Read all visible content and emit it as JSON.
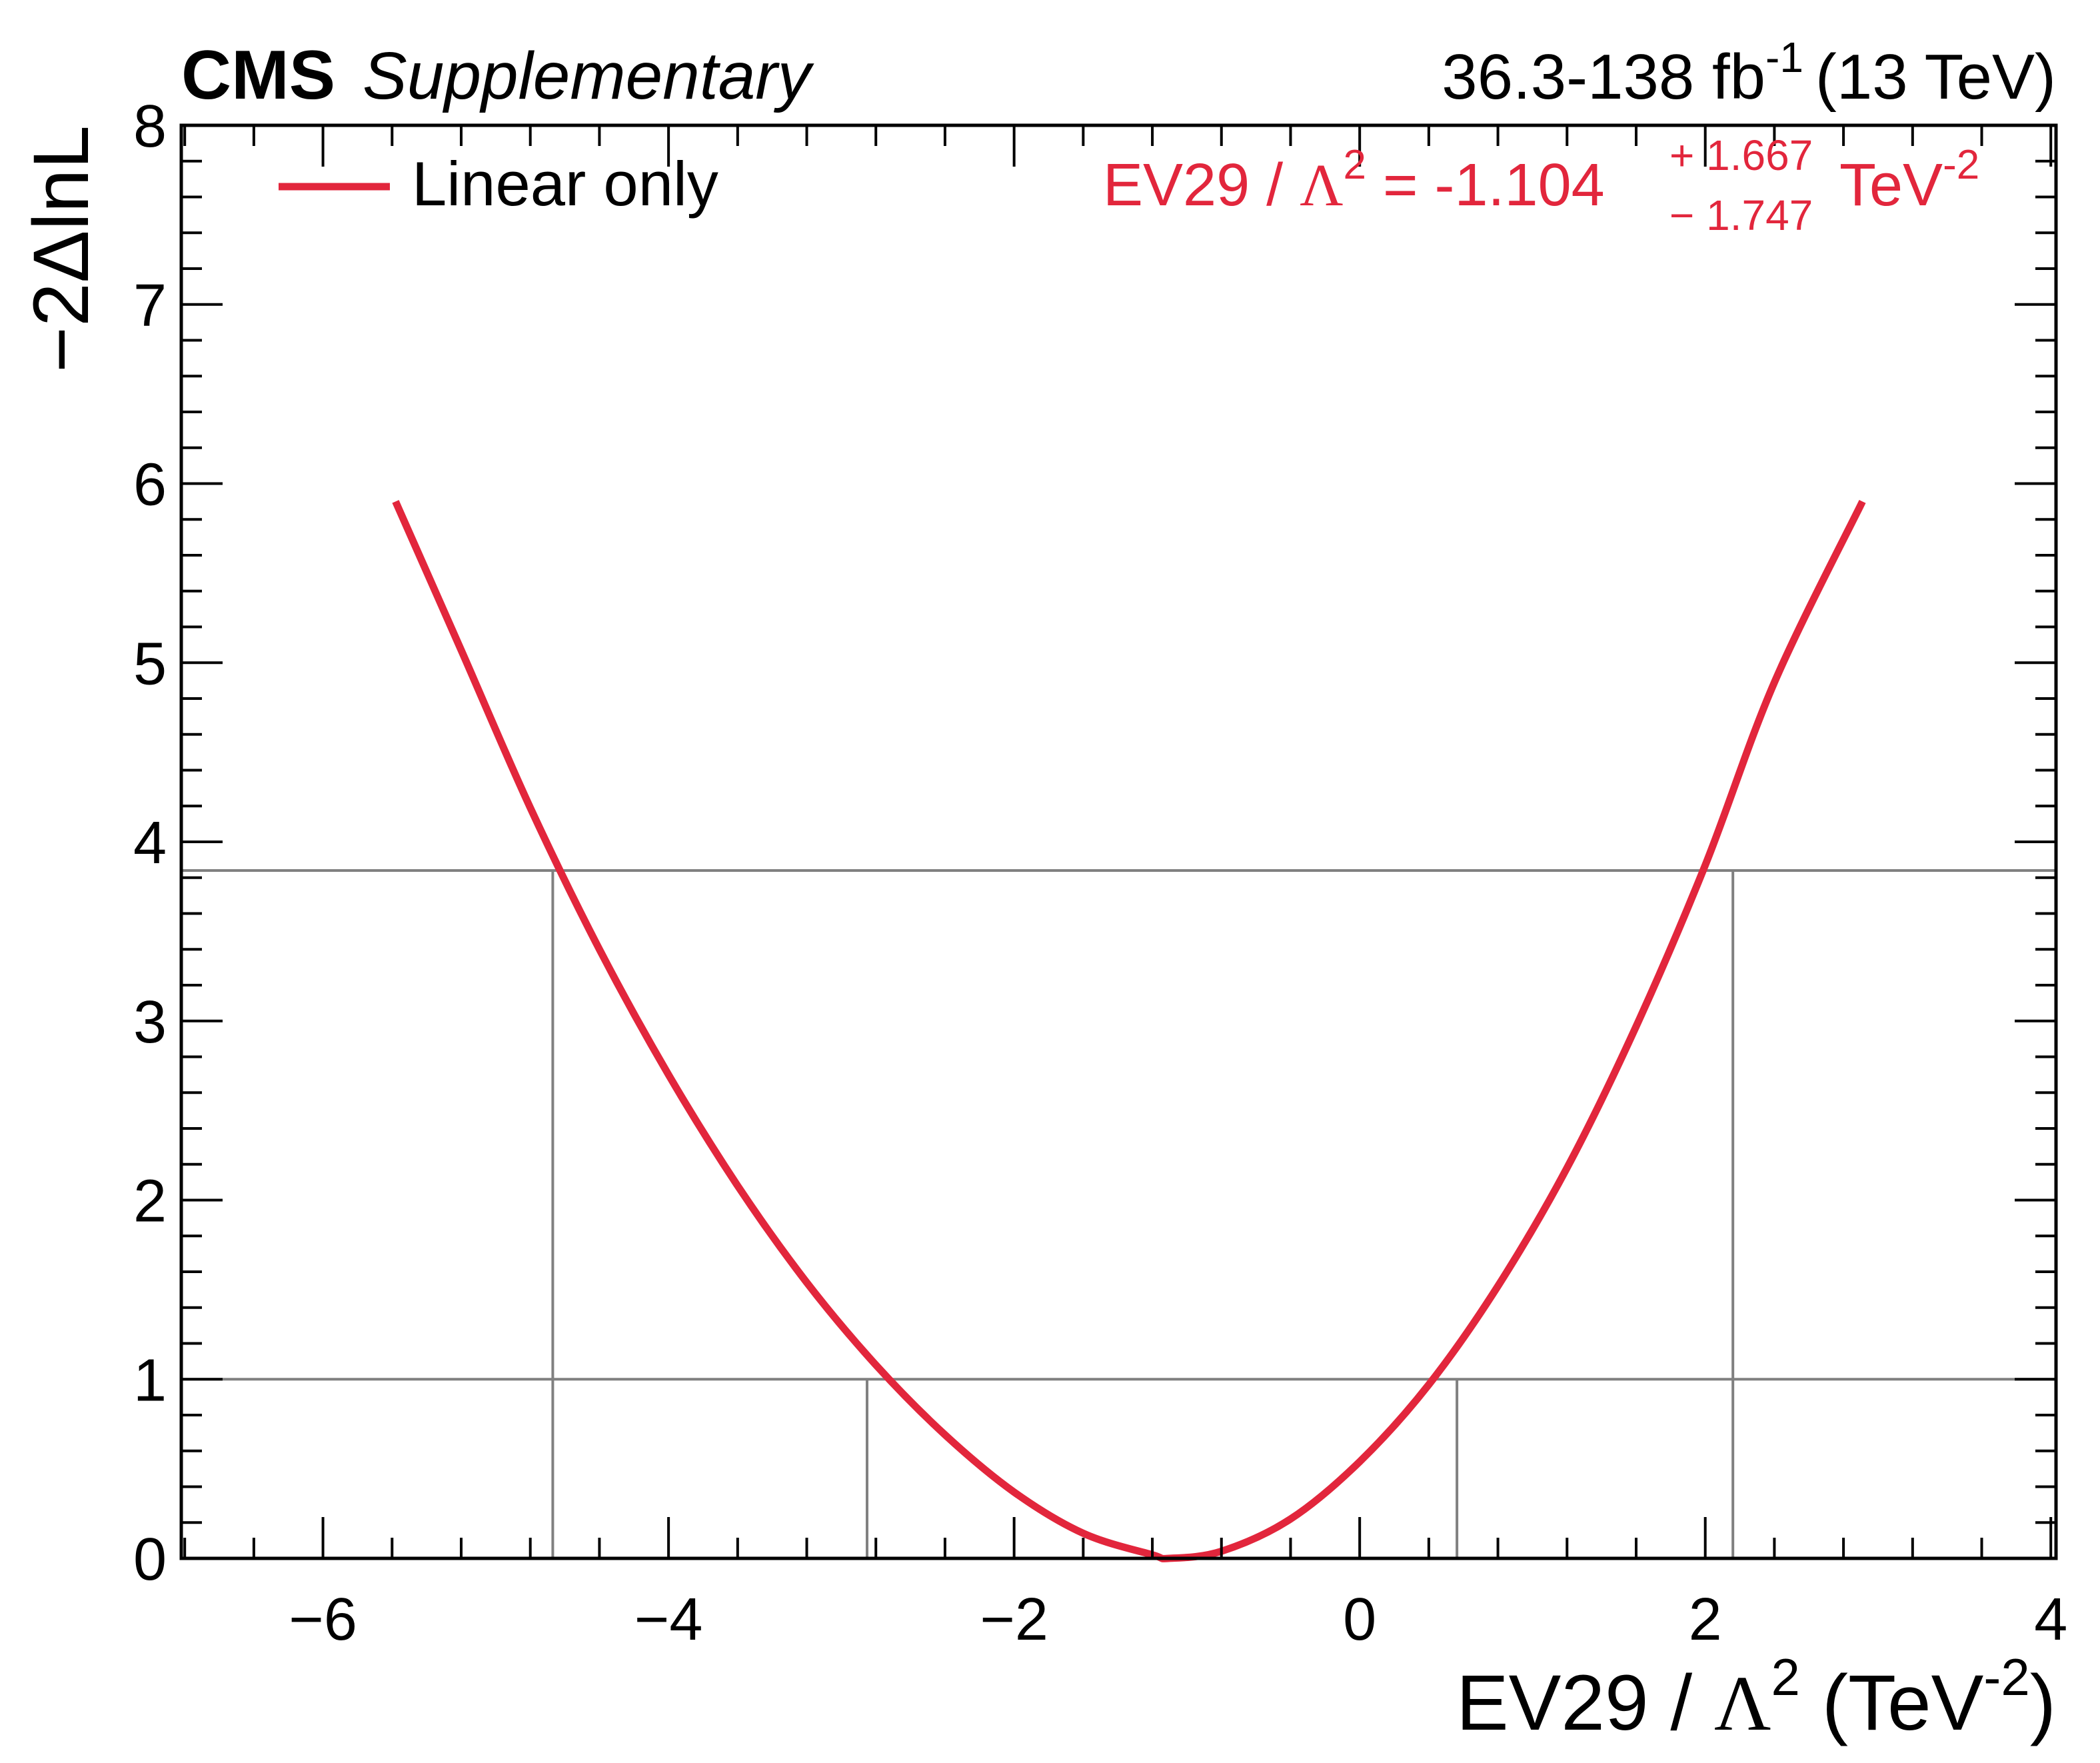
{
  "header": {
    "experiment": "CMS",
    "status": "Supplementary",
    "lumi_prefix": "36.3-138 fb",
    "lumi_exponent": "-1",
    "energy": "(13 TeV)"
  },
  "legend": {
    "label": "Linear only"
  },
  "result": {
    "param": "EV29 / ",
    "lambda": "Λ",
    "lambda_exp": "2",
    "equals": " = -1.104",
    "up": "+ 1.667",
    "down": "− 1.747",
    "unit": "TeV",
    "unit_exp": "-2"
  },
  "axes": {
    "x": {
      "label_param": "EV29 / ",
      "label_lambda": "Λ",
      "label_lambda_exp": "2",
      "label_unit_open": " (TeV",
      "label_unit_exp": "-2",
      "label_close": ")"
    },
    "y": {
      "label": "−2ΔlnL"
    }
  },
  "chart_data": {
    "type": "line",
    "title": "",
    "xlabel": "EV29 / Λ² (TeV⁻²)",
    "ylabel": "−2ΔlnL",
    "xlim": [
      -6.82,
      4.03
    ],
    "ylim": [
      0,
      8
    ],
    "x_ticks": [
      -6,
      -4,
      -2,
      0,
      2,
      4
    ],
    "x_tick_labels": [
      "−6",
      "−4",
      "−2",
      "0",
      "2",
      "4"
    ],
    "y_ticks": [
      0,
      1,
      2,
      3,
      4,
      5,
      6,
      7,
      8
    ],
    "y_tick_labels": [
      "0",
      "1",
      "2",
      "3",
      "4",
      "5",
      "6",
      "7",
      "8"
    ],
    "series": [
      {
        "name": "Linear only",
        "color": "#e2263c",
        "x": [
          -5.58,
          -5.2,
          -4.8,
          -4.4,
          -4.0,
          -3.6,
          -3.2,
          -2.8,
          -2.4,
          -2.0,
          -1.6,
          -1.2,
          -1.104,
          -0.8,
          -0.4,
          0.0,
          0.4,
          0.8,
          1.2,
          1.6,
          2.0,
          2.4,
          2.91
        ],
        "y": [
          5.9,
          5.07,
          4.19,
          3.4,
          2.7,
          2.08,
          1.54,
          1.08,
          0.69,
          0.37,
          0.14,
          0.02,
          0.0,
          0.04,
          0.22,
          0.54,
          0.97,
          1.52,
          2.18,
          2.97,
          3.87,
          4.89,
          5.9
        ]
      }
    ],
    "reference_lines": {
      "horizontal": [
        1.0,
        3.84
      ],
      "vertical_1sigma": [
        -2.851,
        0.563
      ],
      "vertical_2sigma": [
        -4.67,
        2.16
      ]
    },
    "best_fit": -1.104,
    "uncertainty_up": 1.667,
    "uncertainty_down": 1.747,
    "line_color": "#e2263c",
    "reference_color": "#808080",
    "grid": false,
    "legend_position": "top-left"
  }
}
